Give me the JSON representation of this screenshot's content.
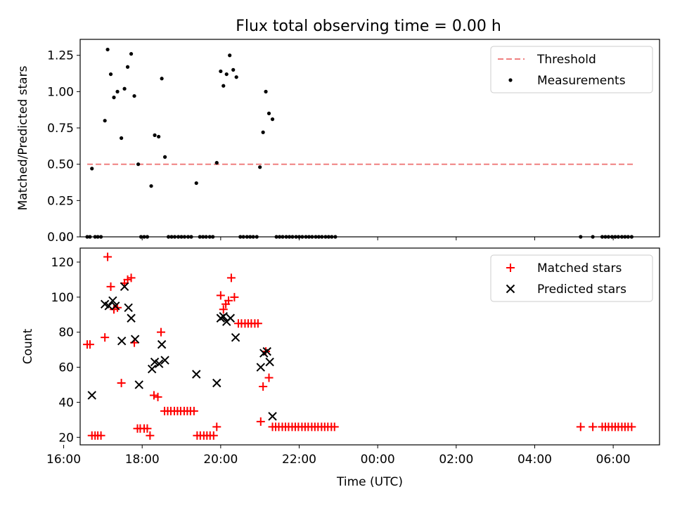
{
  "figure": {
    "title": "Flux total observing time = 0.00 h"
  },
  "chart_data": [
    {
      "type": "scatter",
      "title": "Flux total observing time = 0.00 h",
      "xlabel": "",
      "ylabel": "Matched/Predicted stars",
      "xlim": [
        16.42,
        7.18
      ],
      "ylim": [
        0.0,
        1.36
      ],
      "x_axis_note": "time of day in hours, axis wraps past midnight",
      "yticks": [
        0.0,
        0.25,
        0.5,
        0.75,
        1.0,
        1.25
      ],
      "ytick_labels": [
        "0.00",
        "0.25",
        "0.50",
        "0.75",
        "1.00",
        "1.25"
      ],
      "legend": {
        "position": "upper right",
        "entries": [
          "Threshold",
          "Measurements"
        ]
      },
      "threshold": {
        "name": "Threshold",
        "value": 0.5,
        "x_range": [
          16.6,
          6.52
        ],
        "color": "#f08080",
        "style": "dashed"
      },
      "series": [
        {
          "name": "Measurements",
          "color": "#000000",
          "marker": "dot",
          "points": [
            [
              16.6,
              0.0
            ],
            [
              16.67,
              0.0
            ],
            [
              16.72,
              0.47
            ],
            [
              16.8,
              0.0
            ],
            [
              16.87,
              0.0
            ],
            [
              16.95,
              0.0
            ],
            [
              17.05,
              0.8
            ],
            [
              17.12,
              1.29
            ],
            [
              17.2,
              1.12
            ],
            [
              17.28,
              0.96
            ],
            [
              17.37,
              1.0
            ],
            [
              17.47,
              0.68
            ],
            [
              17.55,
              1.02
            ],
            [
              17.63,
              1.17
            ],
            [
              17.72,
              1.26
            ],
            [
              17.8,
              0.97
            ],
            [
              17.9,
              0.5
            ],
            [
              17.97,
              0.0
            ],
            [
              18.05,
              0.0
            ],
            [
              18.13,
              0.0
            ],
            [
              18.23,
              0.35
            ],
            [
              18.32,
              0.7
            ],
            [
              18.42,
              0.69
            ],
            [
              18.5,
              1.09
            ],
            [
              18.58,
              0.55
            ],
            [
              18.67,
              0.0
            ],
            [
              18.75,
              0.0
            ],
            [
              18.83,
              0.0
            ],
            [
              18.92,
              0.0
            ],
            [
              19.0,
              0.0
            ],
            [
              19.08,
              0.0
            ],
            [
              19.17,
              0.0
            ],
            [
              19.25,
              0.0
            ],
            [
              19.38,
              0.37
            ],
            [
              19.47,
              0.0
            ],
            [
              19.55,
              0.0
            ],
            [
              19.63,
              0.0
            ],
            [
              19.72,
              0.0
            ],
            [
              19.8,
              0.0
            ],
            [
              19.9,
              0.51
            ],
            [
              20.0,
              1.14
            ],
            [
              20.07,
              1.04
            ],
            [
              20.15,
              1.12
            ],
            [
              20.23,
              1.25
            ],
            [
              20.32,
              1.15
            ],
            [
              20.4,
              1.1
            ],
            [
              20.5,
              0.0
            ],
            [
              20.58,
              0.0
            ],
            [
              20.67,
              0.0
            ],
            [
              20.75,
              0.0
            ],
            [
              20.83,
              0.0
            ],
            [
              20.92,
              0.0
            ],
            [
              21.0,
              0.48
            ],
            [
              21.08,
              0.72
            ],
            [
              21.15,
              1.0
            ],
            [
              21.23,
              0.85
            ],
            [
              21.32,
              0.81
            ],
            [
              21.42,
              0.0
            ],
            [
              21.5,
              0.0
            ],
            [
              21.58,
              0.0
            ],
            [
              21.67,
              0.0
            ],
            [
              21.75,
              0.0
            ],
            [
              21.83,
              0.0
            ],
            [
              21.92,
              0.0
            ],
            [
              22.0,
              0.0
            ],
            [
              22.08,
              0.0
            ],
            [
              22.17,
              0.0
            ],
            [
              22.25,
              0.0
            ],
            [
              22.33,
              0.0
            ],
            [
              22.42,
              0.0
            ],
            [
              22.5,
              0.0
            ],
            [
              22.58,
              0.0
            ],
            [
              22.67,
              0.0
            ],
            [
              22.75,
              0.0
            ],
            [
              22.83,
              0.0
            ],
            [
              22.92,
              0.0
            ],
            [
              5.17,
              0.0
            ],
            [
              5.48,
              0.0
            ],
            [
              5.72,
              0.0
            ],
            [
              5.8,
              0.0
            ],
            [
              5.88,
              0.0
            ],
            [
              5.97,
              0.0
            ],
            [
              6.05,
              0.0
            ],
            [
              6.13,
              0.0
            ],
            [
              6.22,
              0.0
            ],
            [
              6.3,
              0.0
            ],
            [
              6.38,
              0.0
            ],
            [
              6.47,
              0.0
            ]
          ]
        }
      ]
    },
    {
      "type": "scatter",
      "title": "",
      "xlabel": "Time (UTC)",
      "ylabel": "Count",
      "xlim": [
        16.42,
        7.18
      ],
      "ylim": [
        15.7,
        128.0
      ],
      "x_axis_note": "time of day in hours, axis wraps past midnight",
      "yticks": [
        20,
        40,
        60,
        80,
        100,
        120
      ],
      "ytick_labels": [
        "20",
        "40",
        "60",
        "80",
        "100",
        "120"
      ],
      "xticks": [
        16,
        18,
        20,
        22,
        0,
        2,
        4,
        6
      ],
      "xtick_labels": [
        "16:00",
        "18:00",
        "20:00",
        "22:00",
        "00:00",
        "02:00",
        "04:00",
        "06:00"
      ],
      "legend": {
        "position": "upper right",
        "entries": [
          "Matched stars",
          "Predicted stars"
        ]
      },
      "series": [
        {
          "name": "Matched stars",
          "color": "#ff0000",
          "marker": "plus",
          "points": [
            [
              16.6,
              73
            ],
            [
              16.67,
              73
            ],
            [
              16.72,
              21
            ],
            [
              16.8,
              21
            ],
            [
              16.87,
              21
            ],
            [
              16.95,
              21
            ],
            [
              17.05,
              77
            ],
            [
              17.12,
              123
            ],
            [
              17.2,
              106
            ],
            [
              17.28,
              93
            ],
            [
              17.37,
              94
            ],
            [
              17.47,
              51
            ],
            [
              17.55,
              108
            ],
            [
              17.63,
              110
            ],
            [
              17.72,
              111
            ],
            [
              17.8,
              74
            ],
            [
              17.88,
              25
            ],
            [
              17.95,
              25
            ],
            [
              18.05,
              25
            ],
            [
              18.13,
              25
            ],
            [
              18.2,
              21
            ],
            [
              18.3,
              44
            ],
            [
              18.4,
              43
            ],
            [
              18.48,
              80
            ],
            [
              18.57,
              35
            ],
            [
              18.65,
              35
            ],
            [
              18.73,
              35
            ],
            [
              18.82,
              35
            ],
            [
              18.9,
              35
            ],
            [
              18.98,
              35
            ],
            [
              19.07,
              35
            ],
            [
              19.15,
              35
            ],
            [
              19.23,
              35
            ],
            [
              19.32,
              35
            ],
            [
              19.4,
              21
            ],
            [
              19.48,
              21
            ],
            [
              19.57,
              21
            ],
            [
              19.65,
              21
            ],
            [
              19.73,
              21
            ],
            [
              19.82,
              21
            ],
            [
              19.9,
              26
            ],
            [
              20.0,
              101
            ],
            [
              20.07,
              93
            ],
            [
              20.13,
              96
            ],
            [
              20.2,
              98
            ],
            [
              20.27,
              111
            ],
            [
              20.35,
              100
            ],
            [
              20.45,
              85
            ],
            [
              20.53,
              85
            ],
            [
              20.62,
              85
            ],
            [
              20.7,
              85
            ],
            [
              20.78,
              85
            ],
            [
              20.87,
              85
            ],
            [
              20.95,
              85
            ],
            [
              21.02,
              29
            ],
            [
              21.08,
              49
            ],
            [
              21.15,
              69
            ],
            [
              21.23,
              54
            ],
            [
              21.32,
              26
            ],
            [
              21.4,
              26
            ],
            [
              21.48,
              26
            ],
            [
              21.57,
              26
            ],
            [
              21.65,
              26
            ],
            [
              21.73,
              26
            ],
            [
              21.82,
              26
            ],
            [
              21.9,
              26
            ],
            [
              21.98,
              26
            ],
            [
              22.07,
              26
            ],
            [
              22.15,
              26
            ],
            [
              22.23,
              26
            ],
            [
              22.32,
              26
            ],
            [
              22.4,
              26
            ],
            [
              22.48,
              26
            ],
            [
              22.57,
              26
            ],
            [
              22.65,
              26
            ],
            [
              22.73,
              26
            ],
            [
              22.82,
              26
            ],
            [
              22.9,
              26
            ],
            [
              5.17,
              26
            ],
            [
              5.48,
              26
            ],
            [
              5.72,
              26
            ],
            [
              5.8,
              26
            ],
            [
              5.88,
              26
            ],
            [
              5.97,
              26
            ],
            [
              6.05,
              26
            ],
            [
              6.13,
              26
            ],
            [
              6.22,
              26
            ],
            [
              6.3,
              26
            ],
            [
              6.38,
              26
            ],
            [
              6.47,
              26
            ]
          ]
        },
        {
          "name": "Predicted stars",
          "color": "#000000",
          "marker": "x",
          "points": [
            [
              16.72,
              44
            ],
            [
              17.05,
              96
            ],
            [
              17.15,
              95
            ],
            [
              17.25,
              98
            ],
            [
              17.32,
              95
            ],
            [
              17.48,
              75
            ],
            [
              17.55,
              106
            ],
            [
              17.65,
              94
            ],
            [
              17.72,
              88
            ],
            [
              17.82,
              76
            ],
            [
              17.92,
              50
            ],
            [
              18.25,
              59
            ],
            [
              18.32,
              63
            ],
            [
              18.43,
              62
            ],
            [
              18.5,
              73
            ],
            [
              18.58,
              64
            ],
            [
              19.38,
              56
            ],
            [
              19.9,
              51
            ],
            [
              20.0,
              88
            ],
            [
              20.07,
              89
            ],
            [
              20.15,
              86
            ],
            [
              20.25,
              88
            ],
            [
              20.38,
              77
            ],
            [
              21.02,
              60
            ],
            [
              21.1,
              68
            ],
            [
              21.18,
              69
            ],
            [
              21.25,
              63
            ],
            [
              21.32,
              32
            ]
          ]
        }
      ]
    }
  ]
}
